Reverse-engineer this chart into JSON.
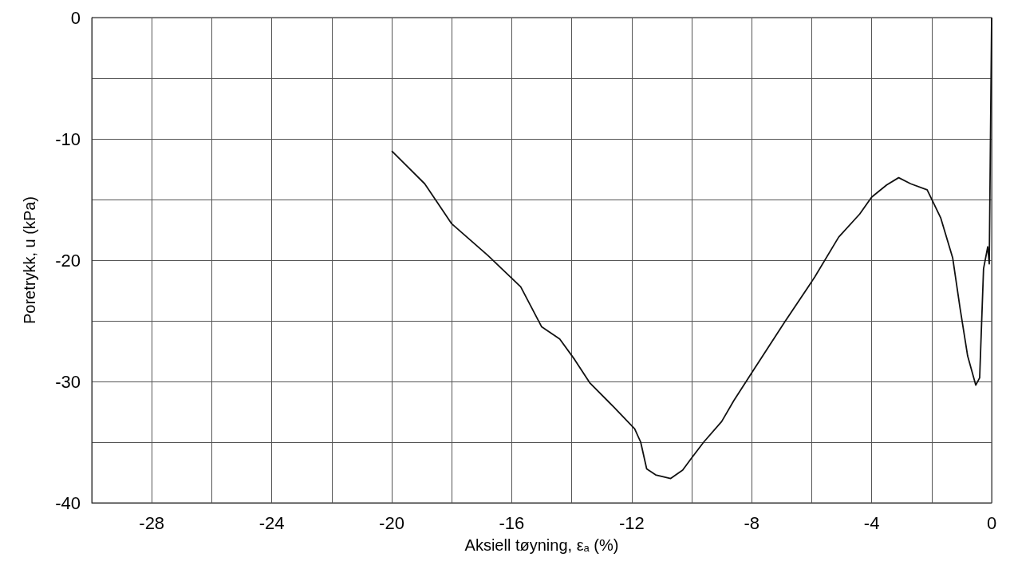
{
  "chart_data": {
    "type": "line",
    "xlabel": "Aksiell tøyning, ε$_{a}$ (%)",
    "ylabel": "Poretrykk, u (kPa)",
    "xlim": [
      -30,
      0
    ],
    "xticks": [
      {
        "value": -30,
        "label": null
      },
      -28,
      {
        "value": -26,
        "label": null
      },
      -24,
      {
        "value": -22,
        "label": null
      },
      -20,
      {
        "value": -18,
        "label": null
      },
      -16,
      {
        "value": -14,
        "label": null
      },
      -12,
      {
        "value": -10,
        "label": null
      },
      -8,
      {
        "value": -6,
        "label": null
      },
      -4,
      {
        "value": -2,
        "label": null
      },
      0
    ],
    "ylim": [
      -40,
      0
    ],
    "yticks": [
      -40,
      {
        "value": -35,
        "label": null
      },
      -30,
      {
        "value": -25,
        "label": null
      },
      -20,
      {
        "value": -15,
        "label": null
      },
      -10,
      {
        "value": -5,
        "label": null
      },
      0
    ],
    "grid": true,
    "marker": "none",
    "line_style": "solid",
    "series": [
      {
        "color": "#111111",
        "x": [
          -20.0,
          -18.9,
          -18.0,
          -16.8,
          -15.7,
          -15.0,
          -14.4,
          -13.9,
          -13.4,
          -12.6,
          -11.9,
          -11.7,
          -11.5,
          -11.2,
          -10.7,
          -10.3,
          -10.0,
          -9.6,
          -9.0,
          -8.6,
          -8.0,
          -6.9,
          -5.9,
          -5.1,
          -4.4,
          -4.0,
          -3.5,
          -3.1,
          -2.7,
          -2.15,
          -1.7,
          -1.3,
          -1.05,
          -0.8,
          -0.53,
          -0.4,
          -0.27,
          -0.13,
          -0.08,
          0
        ],
        "values": [
          -11.0,
          -13.7,
          -17.0,
          -19.6,
          -22.2,
          -25.5,
          -26.5,
          -28.2,
          -30.1,
          -32.1,
          -33.9,
          -35.0,
          -37.2,
          -37.7,
          -38.0,
          -37.3,
          -36.3,
          -35.0,
          -33.3,
          -31.6,
          -29.3,
          -25.1,
          -21.4,
          -18.1,
          -16.2,
          -14.8,
          -13.8,
          -13.2,
          -13.7,
          -14.2,
          -16.5,
          -19.8,
          -24.0,
          -27.9,
          -30.3,
          -29.7,
          -20.7,
          -18.9,
          -20.3,
          0
        ]
      }
    ]
  }
}
